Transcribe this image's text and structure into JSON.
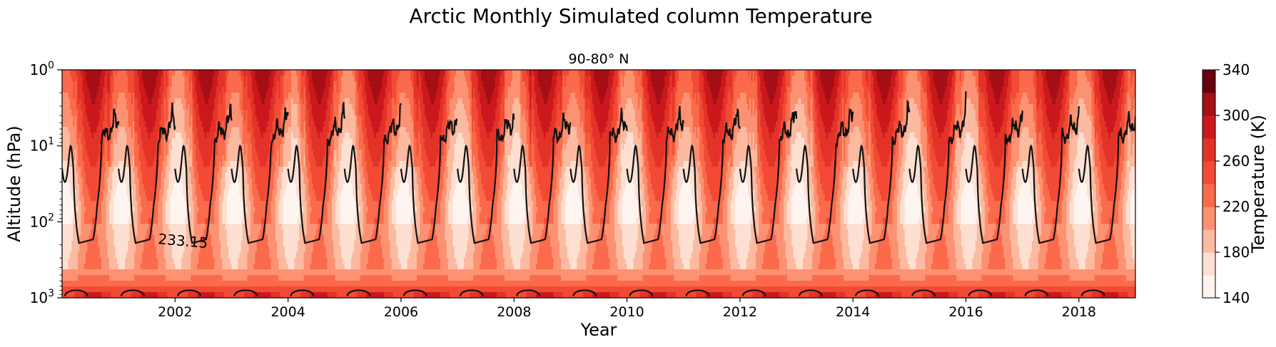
{
  "chart_data": {
    "type": "heatmap",
    "title": "Arctic Monthly Simulated column Temperature",
    "subtitle": "90-80° N",
    "xlabel": "Year",
    "ylabel": "Altitude (hPa)",
    "xlim": [
      2000.0,
      2019.0
    ],
    "ylim_hpa": [
      1000,
      1
    ],
    "y_scale": "log",
    "x_ticks": [
      "2002",
      "2004",
      "2006",
      "2008",
      "2010",
      "2012",
      "2014",
      "2016",
      "2018"
    ],
    "y_ticks": [
      {
        "value": 1,
        "base": "10",
        "exp": "0"
      },
      {
        "value": 10,
        "base": "10",
        "exp": "1"
      },
      {
        "value": 100,
        "base": "10",
        "exp": "2"
      },
      {
        "value": 1000,
        "base": "10",
        "exp": "3"
      }
    ],
    "colorbar": {
      "label": "Temperature (K)",
      "range": [
        140,
        340
      ],
      "tick_labels": [
        "140",
        "180",
        "220",
        "260",
        "300",
        "340"
      ],
      "levels": [
        140,
        160,
        180,
        200,
        220,
        240,
        260,
        280,
        300,
        320,
        340
      ],
      "colors": [
        "#fff5f0",
        "#fee0d2",
        "#fcbba1",
        "#fc9272",
        "#fb6a4a",
        "#f24a35",
        "#e33228",
        "#cb181d",
        "#a50f15",
        "#67000d"
      ]
    },
    "contour": {
      "level_label": "233.15",
      "level_value": 233.15,
      "color": "#111111"
    },
    "grid": false,
    "legend": "none"
  }
}
